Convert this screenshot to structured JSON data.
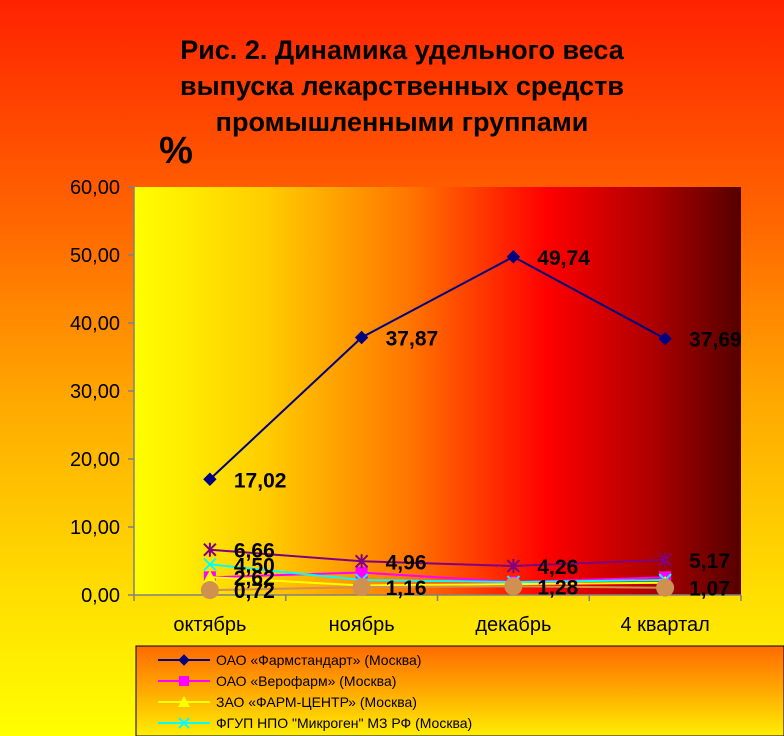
{
  "title_lines": [
    "Рис. 2. Динамика удельного веса",
    "выпуска лекарственных средств",
    "промышленными группами"
  ],
  "y_unit": "%",
  "chart_data": {
    "type": "line",
    "title": "Рис. 2. Динамика удельного веса выпуска лекарственных средств промышленными группами",
    "ylabel": "%",
    "categories": [
      "октябрь",
      "ноябрь",
      "декабрь",
      "4 квартал"
    ],
    "ylim": [
      0,
      60
    ],
    "yticks": [
      "0,00",
      "10,00",
      "20,00",
      "30,00",
      "40,00",
      "50,00",
      "60,00"
    ],
    "grid": false,
    "legend_position": "bottom",
    "series": [
      {
        "name": "ОАО «Фармстандарт» (Москва)",
        "values": [
          17.02,
          37.87,
          49.74,
          37.69
        ],
        "labels": [
          "17,02",
          "37,87",
          "49,74",
          "37,69"
        ],
        "color": "#000080",
        "marker": "diamond"
      },
      {
        "name": "ОАО «Верофарм» (Москва)",
        "values": [
          2.6,
          3.3,
          1.9,
          2.6
        ],
        "labels": [
          "",
          "",
          "",
          ""
        ],
        "color": "#ff00ff",
        "marker": "square"
      },
      {
        "name": "ЗАО «ФАРМ-ЦЕНТР» (Москва)",
        "values": [
          2.62,
          1.4,
          1.6,
          1.8
        ],
        "labels": [
          "2,62",
          "",
          "",
          ""
        ],
        "color": "#ffff00",
        "marker": "triangle"
      },
      {
        "name": "ФГУП НПО \"Микроген\" МЗ РФ (Москва)",
        "values": [
          4.5,
          2.2,
          1.9,
          2.2
        ],
        "labels": [
          "4,50",
          "",
          "",
          ""
        ],
        "color": "#00ffff",
        "marker": "x"
      },
      {
        "name": "",
        "values": [
          6.66,
          4.96,
          4.26,
          5.17
        ],
        "labels": [
          "6,66",
          "4,96",
          "4,26",
          "5,17"
        ],
        "color": "#800080",
        "marker": "star"
      },
      {
        "name": "",
        "values": [
          0.72,
          1.16,
          1.28,
          1.07
        ],
        "labels": [
          "0,72",
          "1,16",
          "1,28",
          "1,07"
        ],
        "color": "#d09050",
        "marker": "circle"
      }
    ]
  }
}
